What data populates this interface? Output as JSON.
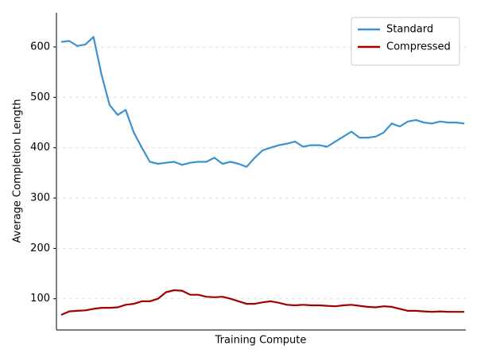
{
  "chart_data": {
    "type": "line",
    "xlabel": "Training Compute",
    "ylabel": "Average Completion Length",
    "ylim": [
      38,
      668
    ],
    "yticks": [
      100,
      200,
      300,
      400,
      500,
      600
    ],
    "grid": true,
    "legend": "upper right",
    "series": [
      {
        "name": "Standard",
        "color": "#3a93d0",
        "values": [
          610,
          612,
          602,
          605,
          620,
          545,
          485,
          465,
          475,
          430,
          400,
          372,
          368,
          370,
          372,
          366,
          370,
          372,
          372,
          380,
          368,
          372,
          368,
          362,
          380,
          395,
          400,
          405,
          408,
          412,
          402,
          405,
          405,
          402,
          412,
          422,
          432,
          420,
          420,
          422,
          430,
          448,
          442,
          452,
          455,
          450,
          448,
          452,
          450,
          450,
          448
        ]
      },
      {
        "name": "Compressed",
        "color": "#a00000",
        "values": [
          68,
          75,
          76,
          77,
          80,
          82,
          82,
          83,
          88,
          90,
          95,
          95,
          100,
          113,
          117,
          116,
          108,
          108,
          104,
          103,
          104,
          100,
          95,
          90,
          90,
          93,
          95,
          92,
          88,
          87,
          88,
          87,
          87,
          86,
          85,
          87,
          88,
          86,
          84,
          83,
          85,
          84,
          80,
          76,
          76,
          75,
          74,
          75,
          74,
          74,
          74
        ]
      }
    ]
  }
}
